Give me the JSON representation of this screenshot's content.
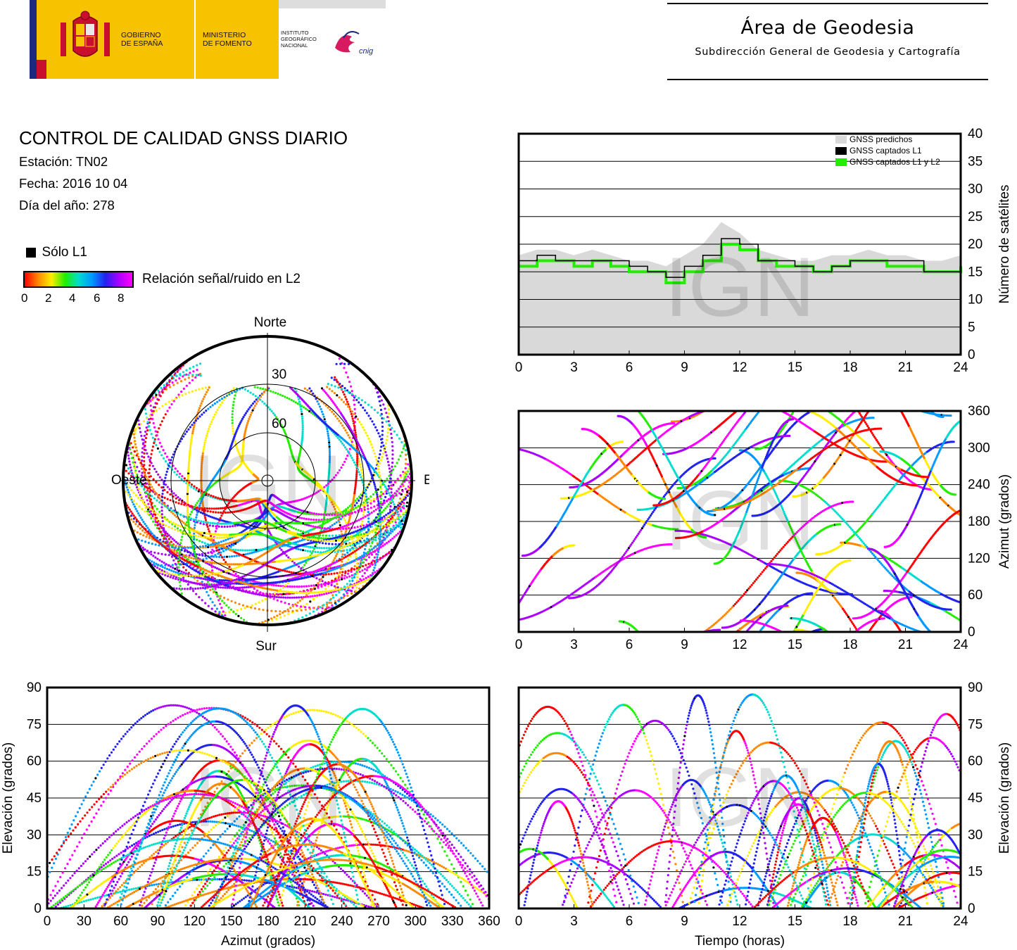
{
  "header": {
    "gov_line1": "GOBIERNO",
    "gov_line2": "DE ESPAÑA",
    "min_line1": "MINISTERIO",
    "min_line2": "DE FOMENTO",
    "inst_line1": "INSTITUTO",
    "inst_line2": "GEOGRÁFICO",
    "inst_line3": "NACIONAL",
    "cnig_logo": "cnig",
    "area_title": "Área de Geodesia",
    "area_subtitle": "Subdirección General de Geodesia y Cartografía"
  },
  "info": {
    "title": "CONTROL DE CALIDAD GNSS DIARIO",
    "station": "Estación: TN02",
    "date": "Fecha: 2016 10 04",
    "doy": "Día del año: 278"
  },
  "legend": {
    "l1_only": "Sólo L1",
    "snr_label": "Relación señal/ruido en L2",
    "snr_ticks": [
      "0",
      "2",
      "4",
      "6",
      "8"
    ],
    "snr_colors": [
      "#ff0000",
      "#ff8800",
      "#ffee00",
      "#22ee00",
      "#00ddcc",
      "#0099ff",
      "#2222ee",
      "#aa00ff",
      "#ff00ff"
    ]
  },
  "watermark": "IGN",
  "chart_data": [
    {
      "type": "polar-skyplot",
      "labels": {
        "north": "Norte",
        "south": "Sur",
        "west": "Oeste",
        "east": "Este"
      },
      "ring_labels": [
        "30",
        "60"
      ],
      "rings_elevation_deg": [
        30,
        60
      ]
    },
    {
      "type": "area",
      "ylabel": "Número de satélites",
      "xlim": [
        0,
        24
      ],
      "ylim": [
        0,
        40
      ],
      "xticks": [
        "0",
        "3",
        "6",
        "9",
        "12",
        "15",
        "18",
        "21",
        "24"
      ],
      "yticks": [
        "0",
        "5",
        "10",
        "15",
        "20",
        "25",
        "30",
        "35",
        "40"
      ],
      "legend": [
        "GNSS predichos",
        "GNSS captados L1",
        "GNSS captados L1 y L2"
      ],
      "legend_colors": [
        "#d9d9d9",
        "#000000",
        "#22ee00"
      ],
      "hours": [
        0,
        1,
        2,
        3,
        4,
        5,
        6,
        7,
        8,
        9,
        10,
        11,
        12,
        13,
        14,
        15,
        16,
        17,
        18,
        19,
        20,
        21,
        22,
        23,
        24
      ],
      "predicted": [
        18,
        19,
        19,
        18,
        19,
        18,
        17,
        17,
        16,
        18,
        20,
        24,
        22,
        19,
        18,
        17,
        17,
        18,
        18,
        19,
        18,
        18,
        17,
        17,
        18
      ],
      "l1": [
        17,
        18,
        17,
        17,
        17,
        17,
        16,
        15,
        14,
        16,
        18,
        21,
        20,
        17,
        17,
        16,
        15,
        16,
        17,
        17,
        17,
        17,
        15,
        15,
        17
      ],
      "l1_l2": [
        16,
        17,
        17,
        16,
        17,
        16,
        15,
        15,
        13,
        15,
        17,
        20,
        19,
        17,
        16,
        16,
        15,
        16,
        17,
        17,
        16,
        16,
        15,
        15,
        16
      ]
    },
    {
      "type": "scatter",
      "ylabel": "Azimut (grados)",
      "xlim": [
        0,
        24
      ],
      "ylim": [
        0,
        360
      ],
      "xticks": [
        "0",
        "3",
        "6",
        "9",
        "12",
        "15",
        "18",
        "21",
        "24"
      ],
      "yticks": [
        "0",
        "60",
        "120",
        "180",
        "240",
        "300",
        "360"
      ]
    },
    {
      "type": "scatter",
      "xlabel": "Azimut (grados)",
      "ylabel": "Elevación (grados)",
      "xlim": [
        0,
        360
      ],
      "ylim": [
        0,
        90
      ],
      "xticks": [
        "0",
        "30",
        "60",
        "90",
        "120",
        "150",
        "180",
        "210",
        "240",
        "270",
        "300",
        "330",
        "360"
      ],
      "yticks": [
        "0",
        "15",
        "30",
        "45",
        "60",
        "75",
        "90"
      ]
    },
    {
      "type": "scatter",
      "xlabel": "Tiempo (horas)",
      "ylabel": "Elevación (grados)",
      "xlim": [
        0,
        24
      ],
      "ylim": [
        0,
        90
      ],
      "xticks": [
        "0",
        "3",
        "6",
        "9",
        "12",
        "15",
        "18",
        "21",
        "24"
      ],
      "yticks": [
        "0",
        "15",
        "30",
        "45",
        "60",
        "75",
        "90"
      ]
    }
  ]
}
